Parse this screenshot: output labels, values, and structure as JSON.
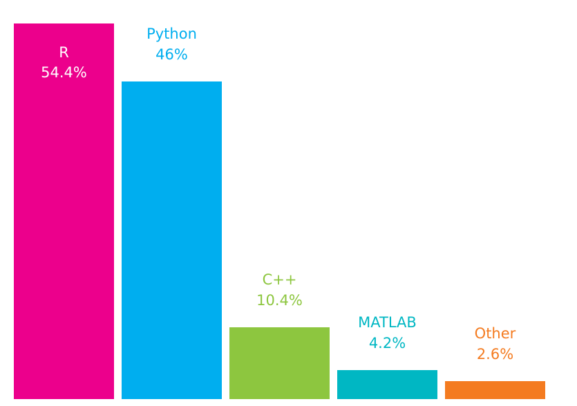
{
  "chart_data": {
    "type": "bar",
    "title": "",
    "xlabel": "",
    "ylabel": "",
    "ylim": [
      0,
      54.4
    ],
    "grid": false,
    "categories": [
      "R",
      "Python",
      "C++",
      "MATLAB",
      "Other"
    ],
    "values": [
      54.4,
      46,
      10.4,
      4.2,
      2.6
    ],
    "value_labels": [
      "54.4%",
      "46%",
      "10.4%",
      "4.2%",
      "2.6%"
    ],
    "colors": [
      "#ec008c",
      "#00aeef",
      "#8dc63f",
      "#00b7c3",
      "#f47b20"
    ],
    "label_colors": [
      "#ffffff",
      "#00aeef",
      "#8dc63f",
      "#00b7c3",
      "#f47b20"
    ],
    "label_inside": [
      true,
      false,
      false,
      false,
      false
    ]
  }
}
